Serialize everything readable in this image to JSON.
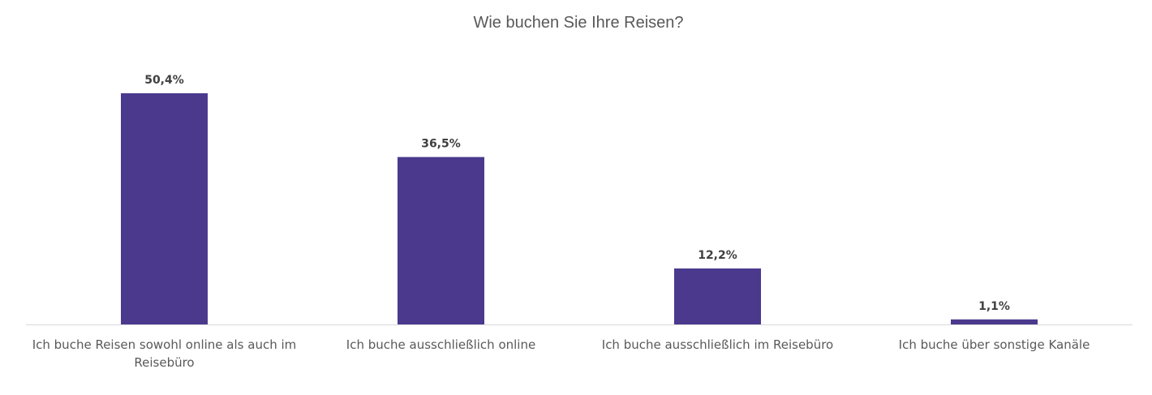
{
  "chart_data": {
    "type": "bar",
    "title": "Wie buchen Sie Ihre Reisen?",
    "categories": [
      [
        "Ich buche Reisen sowohl online als auch im",
        "Reisebüro"
      ],
      [
        "Ich buche ausschließlich online"
      ],
      [
        "Ich buche ausschließlich im Reisebüro"
      ],
      [
        "Ich buche über sonstige Kanäle"
      ]
    ],
    "values": [
      50.4,
      36.5,
      12.2,
      1.1
    ],
    "value_labels": [
      "50,4%",
      "36,5%",
      "12,2%",
      "1,1%"
    ],
    "xlabel": "",
    "ylabel": "",
    "ylim": [
      0,
      50.4
    ],
    "grid": false,
    "legend": "none",
    "colors": {
      "bar": "#4b398e",
      "axis": "#d9d9d9"
    }
  }
}
